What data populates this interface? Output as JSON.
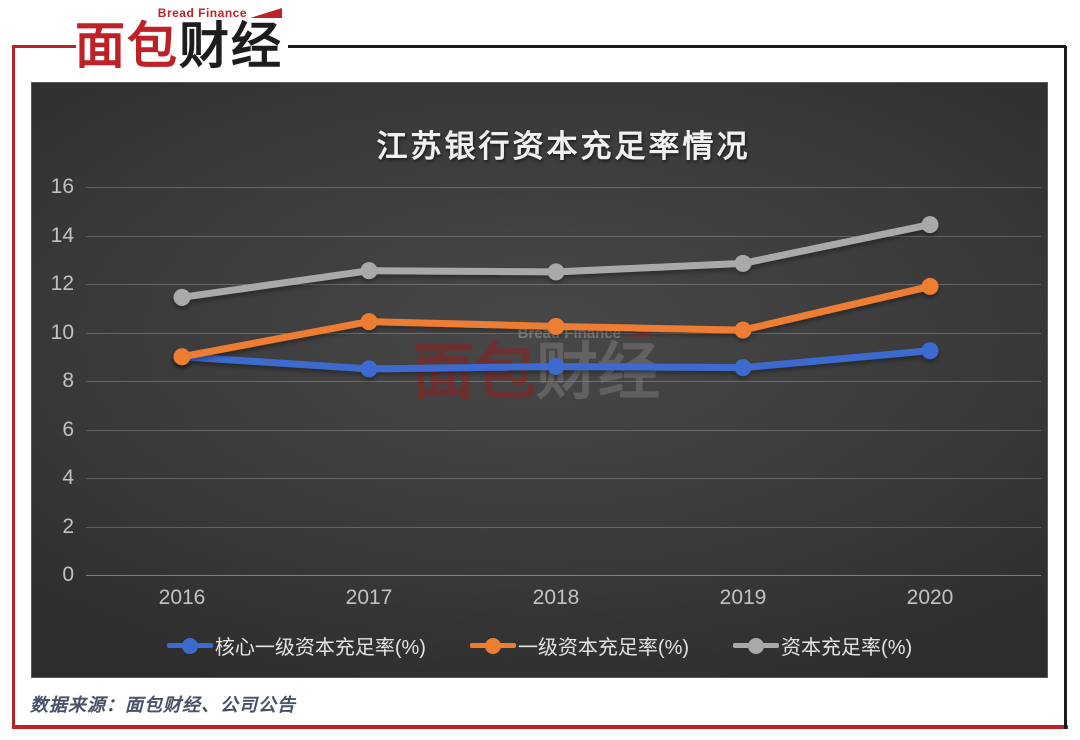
{
  "logo": {
    "brand_small": "Bread Finance",
    "brand_red": "面包",
    "brand_black": "财经"
  },
  "watermark": {
    "small": "Bread Finance",
    "red": "面包",
    "gray": "财经"
  },
  "footer": {
    "source": "数据来源：面包财经、公司公告"
  },
  "colors": {
    "accent_red": "#BE2127",
    "frame_black": "#1B1B1B",
    "chart_bg": "#3A3A3A",
    "grid": "rgba(255,255,255,0.22)",
    "axis_text": "#C2C2C2",
    "title_text": "#F0F0F0",
    "legend_text": "#E4E4E4",
    "source_text": "#495166",
    "series_blue": "#3C6BCE",
    "series_orange": "#ED7D31",
    "series_gray": "#A9A9A9"
  },
  "chart_data": {
    "type": "line",
    "title": "江苏银行资本充足率情况",
    "categories": [
      "2016",
      "2017",
      "2018",
      "2019",
      "2020"
    ],
    "series": [
      {
        "name": "核心一级资本充足率(%)",
        "color": "#3C6BCE",
        "values": [
          9.0,
          8.5,
          8.6,
          8.55,
          9.25
        ]
      },
      {
        "name": "一级资本充足率(%)",
        "color": "#ED7D31",
        "values": [
          9.0,
          10.45,
          10.25,
          10.1,
          11.9
        ]
      },
      {
        "name": "资本充足率(%)",
        "color": "#A9A9A9",
        "values": [
          11.45,
          12.55,
          12.5,
          12.85,
          14.45
        ]
      }
    ],
    "xlabel": "",
    "ylabel": "",
    "ylim": [
      0,
      16
    ],
    "ytick_step": 2,
    "grid": true,
    "legend_position": "bottom",
    "marker": "circle"
  }
}
